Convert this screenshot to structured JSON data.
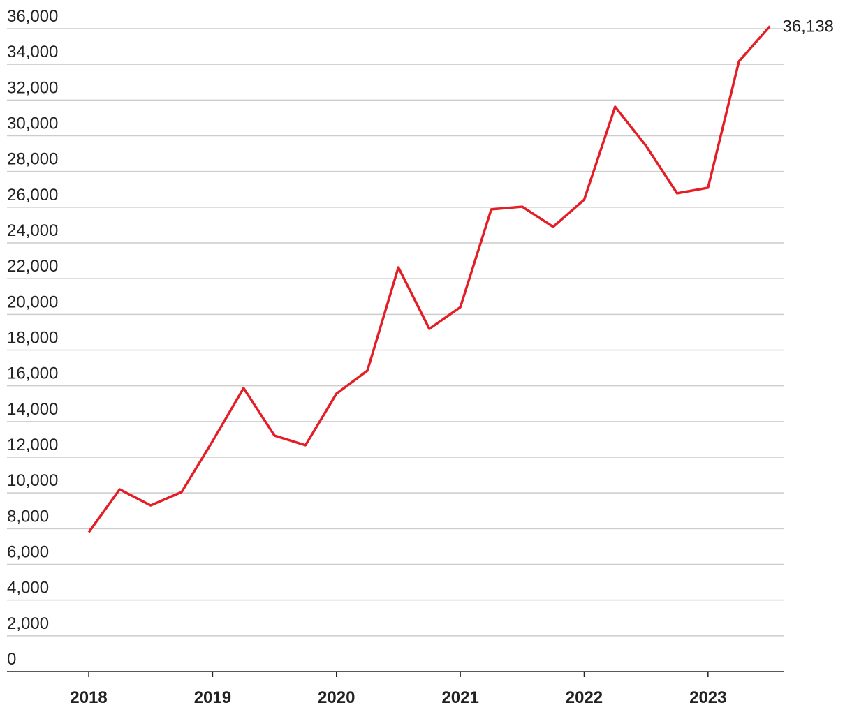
{
  "chart_data": {
    "type": "line",
    "x": [
      2018,
      2018.25,
      2018.5,
      2018.75,
      2019,
      2019.25,
      2019.5,
      2019.75,
      2020,
      2020.25,
      2020.5,
      2020.75,
      2021,
      2021.25,
      2021.5,
      2021.75,
      2022,
      2022.25,
      2022.5,
      2022.75,
      2023,
      2023.25,
      2023.5
    ],
    "series": [
      {
        "color": "#e41e26",
        "values": [
          7800,
          10200,
          9300,
          10050,
          12900,
          15870,
          13210,
          12670,
          15560,
          16850,
          22630,
          19190,
          20400,
          25880,
          26030,
          24900,
          26420,
          31620,
          29430,
          26780,
          27090,
          34170,
          36138
        ],
        "value_labels": [
          null,
          null,
          null,
          null,
          null,
          null,
          null,
          null,
          null,
          null,
          null,
          null,
          null,
          null,
          null,
          null,
          null,
          null,
          null,
          null,
          null,
          null,
          "36,138"
        ]
      }
    ],
    "xlim": [
      2017.34,
      2023.61
    ],
    "xticks": [
      2018,
      2019,
      2020,
      2021,
      2022,
      2023
    ],
    "ylim": [
      0,
      36000
    ],
    "yticks": [
      0,
      {
        "value": 2000,
        "label": "2,000"
      },
      {
        "value": 4000,
        "label": "4,000"
      },
      {
        "value": 6000,
        "label": "6,000"
      },
      {
        "value": 8000,
        "label": "8,000"
      },
      {
        "value": 10000,
        "label": "10,000"
      },
      {
        "value": 12000,
        "label": "12,000"
      },
      {
        "value": 14000,
        "label": "14,000"
      },
      {
        "value": 16000,
        "label": "16,000"
      },
      {
        "value": 18000,
        "label": "18,000"
      },
      {
        "value": 20000,
        "label": "20,000"
      },
      {
        "value": 22000,
        "label": "22,000"
      },
      {
        "value": 24000,
        "label": "24,000"
      },
      {
        "value": 26000,
        "label": "26,000"
      },
      {
        "value": 28000,
        "label": "28,000"
      },
      {
        "value": 30000,
        "label": "30,000"
      },
      {
        "value": 32000,
        "label": "32,000"
      },
      {
        "value": 34000,
        "label": "34,000"
      },
      {
        "value": 36000,
        "label": "36,000"
      }
    ],
    "grid": true
  }
}
